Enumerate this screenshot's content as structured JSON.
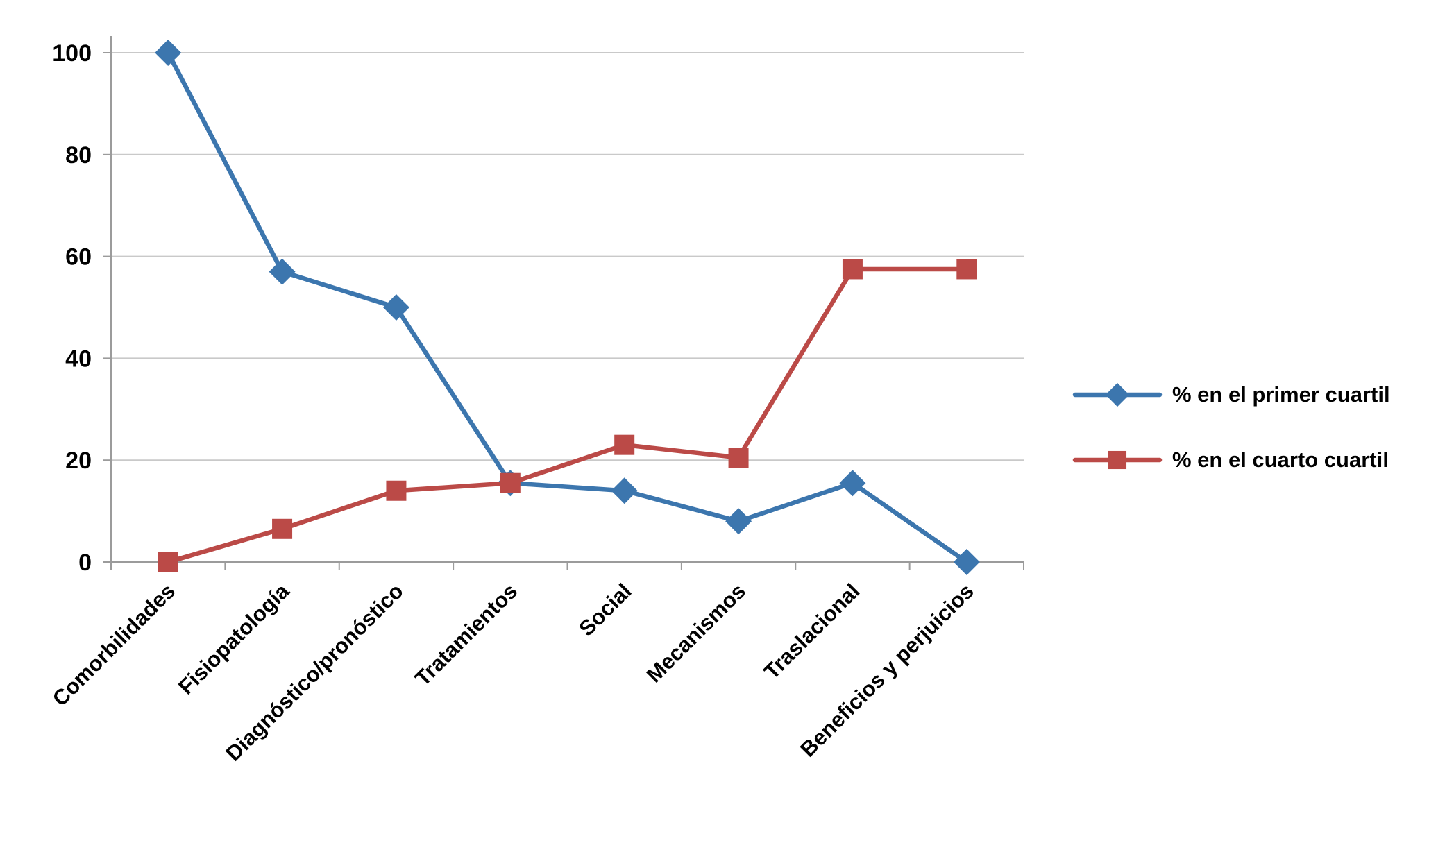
{
  "chart_data": {
    "type": "line",
    "categories": [
      "Comorbilidades",
      "Fisiopatología",
      "Diagnóstico/pronóstico",
      "Tratamientos",
      "Social",
      "Mecanismos",
      "Traslacional",
      "Beneficios y perjuicios"
    ],
    "series": [
      {
        "name": "% en el primer cuartil",
        "color": "#3C76AE",
        "marker": "diamond",
        "values": [
          100,
          57,
          50,
          15.5,
          14,
          8,
          15.5,
          0
        ]
      },
      {
        "name": "% en el cuarto cuartil",
        "color": "#BB4A47",
        "marker": "square",
        "values": [
          0,
          6.5,
          14,
          15.5,
          23,
          20.5,
          57.5,
          57.5
        ]
      }
    ],
    "ylim": [
      0,
      100
    ],
    "yticks": [
      0,
      20,
      40,
      60,
      80,
      100
    ],
    "grid": true,
    "legend_position": "right",
    "colors": {
      "grid": "#C9C9C9",
      "axis": "#9B9B9B",
      "text": "#000000"
    }
  }
}
